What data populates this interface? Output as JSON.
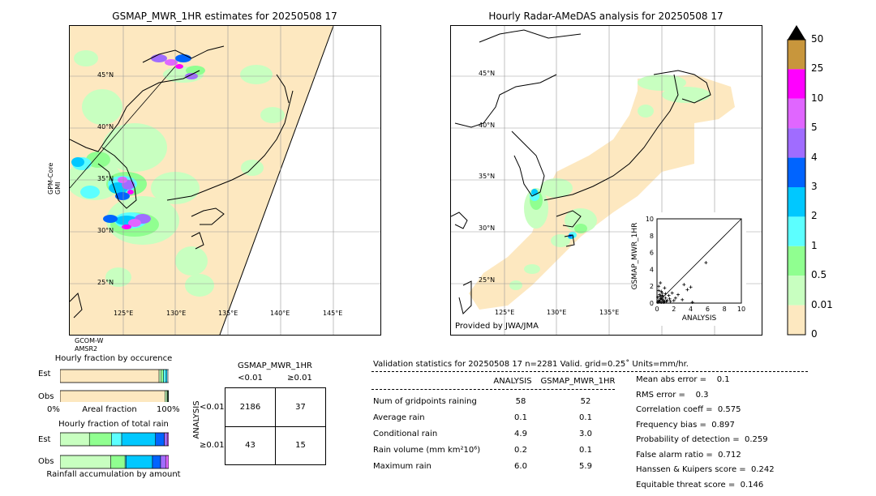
{
  "left_map": {
    "title": "GSMAP_MWR_1HR estimates for 20250508 17",
    "lat_labels": [
      "45°N",
      "40°N",
      "35°N",
      "30°N",
      "25°N"
    ],
    "lon_labels": [
      "125°E",
      "130°E",
      "135°E",
      "140°E",
      "145°E"
    ],
    "sensor_left": [
      "GPM-Core",
      "GMI"
    ],
    "sensor_bottom": [
      "GCOM-W",
      "AMSR2"
    ]
  },
  "right_map": {
    "title": "Hourly Radar-AMeDAS analysis for 20250508 17",
    "lat_labels": [
      "45°N",
      "40°N",
      "35°N",
      "30°N",
      "25°N"
    ],
    "lon_labels": [
      "125°E",
      "130°E",
      "135°E"
    ],
    "provided_by": "Provided by JWA/JMA"
  },
  "colorbar": {
    "labels": [
      "50",
      "25",
      "10",
      "5",
      "4",
      "3",
      "2",
      "1",
      "0.5",
      "0.01",
      "0"
    ],
    "colors": [
      "#c8963c",
      "#ff00ff",
      "#e066ff",
      "#a06cff",
      "#0064ff",
      "#00c8ff",
      "#5cffff",
      "#90ff90",
      "#c8ffc0",
      "#fde8c0"
    ]
  },
  "chart_data": [
    {
      "type": "bar",
      "title": "Hourly fraction by occurence",
      "categories": [
        "Est",
        "Obs"
      ],
      "xlabel": "Areal fraction",
      "x_tick_labels": [
        "0%",
        "100%"
      ],
      "colors": [
        "#fde8c0",
        "#c8ffc0",
        "#90ff90",
        "#5cffff",
        "#00c8ff",
        "#0064ff"
      ],
      "series": [
        {
          "values": [
            0.911,
            0.965
          ]
        },
        {
          "values": [
            0.02,
            0.02
          ]
        },
        {
          "values": [
            0.02,
            0.006
          ]
        },
        {
          "values": [
            0.025,
            0.005
          ]
        },
        {
          "values": [
            0.01,
            0.002
          ]
        },
        {
          "values": [
            0.0,
            0.002
          ]
        }
      ]
    },
    {
      "type": "bar",
      "title": "Hourly fraction of total rain",
      "categories": [
        "Est",
        "Obs"
      ],
      "xlabel": "Rainfall accumulation by amount",
      "colors": [
        "#c8ffc0",
        "#90ff90",
        "#5cffff",
        "#00c8ff",
        "#0064ff",
        "#a06cff",
        "#e066ff"
      ],
      "series": [
        {
          "values": [
            0.2,
            0.5
          ]
        },
        {
          "values": [
            0.15,
            0.14
          ]
        },
        {
          "values": [
            0.07,
            0.01
          ]
        },
        {
          "values": [
            0.23,
            0.26
          ]
        },
        {
          "values": [
            0.06,
            0.08
          ]
        },
        {
          "values": [
            0.02,
            0.05
          ]
        },
        {
          "values": [
            0.01,
            0.03
          ]
        }
      ]
    },
    {
      "type": "scatter",
      "xlabel": "ANALYSIS",
      "ylabel": "GSMAP_MWR_1HR",
      "xlim": [
        0,
        10
      ],
      "ylim": [
        0,
        10
      ],
      "ticks": [
        0,
        2,
        4,
        6,
        8,
        10
      ],
      "x": [
        0.1,
        0.2,
        0.3,
        0.4,
        0.5,
        0.6,
        0.8,
        1.0,
        1.2,
        0.3,
        0.5,
        0.7,
        0.9,
        0.2,
        0.4,
        1.5,
        1.8,
        2.0,
        0.6,
        0.8,
        1.1,
        2.5,
        3.0,
        3.2,
        3.6,
        4.0,
        4.2,
        5.8,
        0.1,
        0.3,
        0.5,
        1.0,
        1.4,
        0.2,
        0.7,
        0.9,
        2.2,
        1.6,
        0.4,
        0.6
      ],
      "y": [
        0.1,
        0.3,
        0.2,
        0.5,
        0.1,
        0.4,
        0.2,
        0.6,
        0.3,
        1.0,
        1.4,
        0.8,
        1.8,
        2.0,
        2.4,
        0.5,
        1.2,
        0.3,
        0.9,
        0.1,
        0.2,
        1.0,
        0.4,
        2.2,
        1.6,
        1.9,
        0.1,
        4.8,
        0.7,
        0.2,
        0.6,
        1.1,
        0.9,
        1.5,
        0.4,
        0.2,
        0.6,
        0.2,
        0.8,
        1.2
      ]
    }
  ],
  "contingency": {
    "title": "GSMAP_MWR_1HR",
    "col_headers": [
      "<0.01",
      "≥0.01"
    ],
    "row_axis": "ANALYSIS",
    "row_headers": [
      "<0.01",
      "≥0.01"
    ],
    "cells": [
      "2186",
      "37",
      "43",
      "15"
    ]
  },
  "validation": {
    "header": "Validation statistics for 20250508 17  n=2281 Valid. grid=0.25˚ Units=mm/hr.",
    "col1": "ANALYSIS",
    "col2": "GSMAP_MWR_1HR",
    "rows": [
      {
        "label": "Num of gridpoints raining",
        "a": "58",
        "b": "52"
      },
      {
        "label": "Average rain",
        "a": "0.1",
        "b": "0.1"
      },
      {
        "label": "Conditional rain",
        "a": "4.9",
        "b": "3.0"
      },
      {
        "label": "Rain volume (mm km²10⁶)",
        "a": "0.2",
        "b": "0.1"
      },
      {
        "label": "Maximum rain",
        "a": "6.0",
        "b": "5.9"
      }
    ],
    "scores": [
      "Mean abs error =    0.1",
      "RMS error =    0.3",
      "Correlation coeff =  0.575",
      "Frequency bias =  0.897",
      "Probability of detection =  0.259",
      "False alarm ratio =  0.712",
      "Hanssen & Kuipers score =  0.242",
      "Equitable threat score =  0.146"
    ]
  }
}
